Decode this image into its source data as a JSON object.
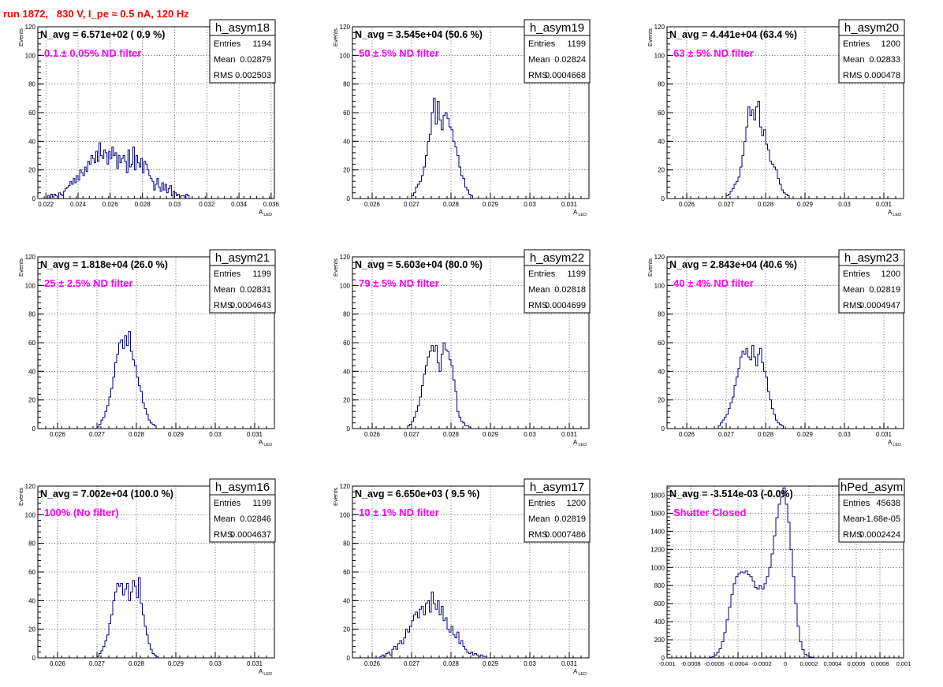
{
  "run_title": "run 1872,   830 V, I_pe ≈ 0.5 nA, 120 Hz",
  "stats_labels": {
    "entries": "Entries",
    "mean": "Mean",
    "rms": "RMS"
  },
  "colors": {
    "histogram": "#000080",
    "annotation": "#ff00ff",
    "title": "#ff0000",
    "grid": "#000000"
  },
  "chart_data": [
    {
      "type": "histogram",
      "name": "h_asym18",
      "navg_text": "N_avg = 6.571e+02 ( 0.9 %)",
      "filter_label": "0.1 ± 0.05% ND filter",
      "entries": "1194",
      "mean": "0.02879",
      "rms": "0.002503",
      "xlabel": "A_LED",
      "ylabel": "Events",
      "xlim": [
        0.0215,
        0.0362
      ],
      "ylim": [
        0,
        120
      ],
      "x_ticks": [
        0.022,
        0.024,
        0.026,
        0.028,
        0.03,
        0.032,
        0.034,
        0.036
      ],
      "x_tick_labels": [
        "0.022",
        "0.024",
        "0.026",
        "0.028",
        "0.03",
        "0.032",
        "0.034",
        "0.036"
      ],
      "y_ticks": [
        0,
        20,
        40,
        60,
        80,
        100,
        120
      ],
      "y_tick_labels": [
        "0",
        "20",
        "40",
        "60",
        "80",
        "100",
        "120"
      ],
      "bins": {
        "x0": 0.0221,
        "width": 0.0001,
        "counts": [
          2,
          0,
          3,
          1,
          3,
          2,
          0,
          4,
          3,
          2,
          5,
          7,
          8,
          9,
          12,
          10,
          14,
          11,
          16,
          13,
          20,
          18,
          16,
          22,
          19,
          26,
          24,
          30,
          28,
          25,
          33,
          26,
          39,
          30,
          28,
          34,
          32,
          24,
          33,
          28,
          36,
          30,
          32,
          21,
          30,
          25,
          28,
          30,
          26,
          18,
          34,
          22,
          24,
          36,
          20,
          30,
          25,
          22,
          28,
          18,
          26,
          24,
          20,
          16,
          14,
          12,
          6,
          10,
          14,
          8,
          5,
          11,
          6,
          10,
          4,
          7,
          9,
          2,
          5,
          4,
          2,
          3,
          1,
          2,
          2,
          1,
          3,
          2
        ]
      }
    },
    {
      "type": "histogram",
      "name": "h_asym19",
      "navg_text": "N_avg = 3.545e+04 (50.6 %)",
      "filter_label": "50 ± 5% ND filter",
      "entries": "1199",
      "mean": "0.02824",
      "rms": "0.0004668",
      "xlabel": "A_LED",
      "ylabel": "Events",
      "xlim": [
        0.0255,
        0.0315
      ],
      "ylim": [
        0,
        120
      ],
      "x_ticks": [
        0.026,
        0.027,
        0.028,
        0.029,
        0.03,
        0.031
      ],
      "x_tick_labels": [
        "0.026",
        "0.027",
        "0.028",
        "0.029",
        "0.03",
        "0.031"
      ],
      "y_ticks": [
        0,
        20,
        40,
        60,
        80,
        100,
        120
      ],
      "y_tick_labels": [
        "0",
        "20",
        "40",
        "60",
        "80",
        "100",
        "120"
      ],
      "bins": {
        "x0": 0.027,
        "width": 5e-05,
        "counts": [
          2,
          4,
          8,
          10,
          12,
          16,
          22,
          30,
          40,
          45,
          60,
          70,
          52,
          68,
          55,
          48,
          58,
          60,
          56,
          50,
          48,
          40,
          36,
          30,
          22,
          16,
          14,
          8,
          6,
          3,
          2
        ]
      }
    },
    {
      "type": "histogram",
      "name": "h_asym20",
      "navg_text": "N_avg = 4.441e+04 (63.4 %)",
      "filter_label": "63 ± 5% ND filter",
      "entries": "1200",
      "mean": "0.02833",
      "rms": "0.000478",
      "xlabel": "A_LED",
      "ylabel": "Events",
      "xlim": [
        0.0255,
        0.0315
      ],
      "ylim": [
        0,
        120
      ],
      "x_ticks": [
        0.026,
        0.027,
        0.028,
        0.029,
        0.03,
        0.031
      ],
      "x_tick_labels": [
        "0.026",
        "0.027",
        "0.028",
        "0.029",
        "0.03",
        "0.031"
      ],
      "y_ticks": [
        0,
        20,
        40,
        60,
        80,
        100,
        120
      ],
      "y_tick_labels": [
        "0",
        "20",
        "40",
        "60",
        "80",
        "100",
        "120"
      ],
      "bins": {
        "x0": 0.027,
        "width": 5e-05,
        "counts": [
          2,
          3,
          5,
          7,
          10,
          12,
          15,
          22,
          30,
          40,
          50,
          64,
          58,
          62,
          55,
          64,
          68,
          50,
          44,
          48,
          38,
          34,
          26,
          24,
          22,
          20,
          14,
          10,
          6,
          4,
          3,
          2
        ]
      }
    },
    {
      "type": "histogram",
      "name": "h_asym21",
      "navg_text": "N_avg = 1.818e+04 (26.0 %)",
      "filter_label": "25 ± 2.5% ND filter",
      "entries": "1199",
      "mean": "0.02831",
      "rms": "0.0004643",
      "xlabel": "A_LED",
      "ylabel": "Events",
      "xlim": [
        0.0255,
        0.0315
      ],
      "ylim": [
        0,
        120
      ],
      "x_ticks": [
        0.026,
        0.027,
        0.028,
        0.029,
        0.03,
        0.031
      ],
      "x_tick_labels": [
        "0.026",
        "0.027",
        "0.028",
        "0.029",
        "0.03",
        "0.031"
      ],
      "y_ticks": [
        0,
        20,
        40,
        60,
        80,
        100,
        120
      ],
      "y_tick_labels": [
        "0",
        "20",
        "40",
        "60",
        "80",
        "100",
        "120"
      ],
      "bins": {
        "x0": 0.027,
        "width": 5e-05,
        "counts": [
          1,
          3,
          6,
          8,
          12,
          16,
          22,
          28,
          36,
          46,
          52,
          60,
          62,
          56,
          65,
          58,
          68,
          54,
          48,
          44,
          36,
          30,
          26,
          18,
          14,
          10,
          6,
          4,
          3,
          2
        ]
      }
    },
    {
      "type": "histogram",
      "name": "h_asym22",
      "navg_text": "N_avg = 5.603e+04 (80.0 %)",
      "filter_label": "79 ± 5% ND filter",
      "entries": "1199",
      "mean": "0.02818",
      "rms": "0.0004699",
      "xlabel": "A_LED",
      "ylabel": "Events",
      "xlim": [
        0.0255,
        0.0315
      ],
      "ylim": [
        0,
        120
      ],
      "x_ticks": [
        0.026,
        0.027,
        0.028,
        0.029,
        0.03,
        0.031
      ],
      "x_tick_labels": [
        "0.026",
        "0.027",
        "0.028",
        "0.029",
        "0.03",
        "0.031"
      ],
      "y_ticks": [
        0,
        20,
        40,
        60,
        80,
        100,
        120
      ],
      "y_tick_labels": [
        "0",
        "20",
        "40",
        "60",
        "80",
        "100",
        "120"
      ],
      "bins": {
        "x0": 0.0269,
        "width": 5e-05,
        "counts": [
          2,
          3,
          5,
          8,
          12,
          16,
          22,
          30,
          38,
          44,
          50,
          54,
          58,
          54,
          58,
          46,
          40,
          52,
          60,
          55,
          54,
          48,
          44,
          34,
          26,
          12,
          8,
          5,
          4,
          2,
          2,
          1
        ]
      }
    },
    {
      "type": "histogram",
      "name": "h_asym23",
      "navg_text": "N_avg = 2.843e+04 (40.6 %)",
      "filter_label": "40 ± 4% ND filter",
      "entries": "1200",
      "mean": "0.02819",
      "rms": "0.0004947",
      "xlabel": "A_LED",
      "ylabel": "Events",
      "xlim": [
        0.0255,
        0.0315
      ],
      "ylim": [
        0,
        120
      ],
      "x_ticks": [
        0.026,
        0.027,
        0.028,
        0.029,
        0.03,
        0.031
      ],
      "x_tick_labels": [
        "0.026",
        "0.027",
        "0.028",
        "0.029",
        "0.03",
        "0.031"
      ],
      "y_ticks": [
        0,
        20,
        40,
        60,
        80,
        100,
        120
      ],
      "y_tick_labels": [
        "0",
        "20",
        "40",
        "60",
        "80",
        "100",
        "120"
      ],
      "bins": {
        "x0": 0.0268,
        "width": 5e-05,
        "counts": [
          2,
          4,
          6,
          8,
          10,
          14,
          18,
          22,
          30,
          36,
          42,
          50,
          54,
          52,
          56,
          50,
          48,
          58,
          50,
          44,
          52,
          56,
          46,
          40,
          36,
          26,
          20,
          14,
          10,
          6,
          4,
          3,
          2
        ]
      }
    },
    {
      "type": "histogram",
      "name": "h_asym16",
      "navg_text": "N_avg = 7.002e+04 (100.0 %)",
      "filter_label": "100% (No filter)",
      "entries": "1199",
      "mean": "0.02846",
      "rms": "0.0004637",
      "xlabel": "A_LED",
      "ylabel": "Events",
      "xlim": [
        0.0255,
        0.0315
      ],
      "ylim": [
        0,
        120
      ],
      "x_ticks": [
        0.026,
        0.027,
        0.028,
        0.029,
        0.03,
        0.031
      ],
      "x_tick_labels": [
        "0.026",
        "0.027",
        "0.028",
        "0.029",
        "0.03",
        "0.031"
      ],
      "y_ticks": [
        0,
        20,
        40,
        60,
        80,
        100,
        120
      ],
      "y_tick_labels": [
        "0",
        "20",
        "40",
        "60",
        "80",
        "100",
        "120"
      ],
      "bins": {
        "x0": 0.027,
        "width": 5e-05,
        "counts": [
          1,
          3,
          5,
          8,
          12,
          16,
          24,
          30,
          40,
          46,
          52,
          50,
          52,
          44,
          48,
          52,
          40,
          46,
          54,
          50,
          42,
          56,
          38,
          30,
          22,
          16,
          10,
          6,
          3,
          2,
          1
        ]
      }
    },
    {
      "type": "histogram",
      "name": "h_asym17",
      "navg_text": "N_avg = 6.650e+03 ( 9.5 %)",
      "filter_label": "10 ± 1% ND filter",
      "entries": "1200",
      "mean": "0.02819",
      "rms": "0.0007486",
      "xlabel": "A_LED",
      "ylabel": "Events",
      "xlim": [
        0.0255,
        0.0315
      ],
      "ylim": [
        0,
        120
      ],
      "x_ticks": [
        0.026,
        0.027,
        0.028,
        0.029,
        0.03,
        0.031
      ],
      "x_tick_labels": [
        "0.026",
        "0.027",
        "0.028",
        "0.029",
        "0.03",
        "0.031"
      ],
      "y_ticks": [
        0,
        20,
        40,
        60,
        80,
        100,
        120
      ],
      "y_tick_labels": [
        "0",
        "20",
        "40",
        "60",
        "80",
        "100",
        "120"
      ],
      "bins": {
        "x0": 0.0262,
        "width": 5e-05,
        "counts": [
          1,
          2,
          1,
          3,
          4,
          2,
          6,
          8,
          6,
          10,
          12,
          10,
          14,
          20,
          18,
          22,
          26,
          30,
          32,
          28,
          34,
          36,
          30,
          38,
          40,
          32,
          46,
          38,
          34,
          40,
          30,
          36,
          26,
          28,
          20,
          18,
          22,
          16,
          14,
          18,
          10,
          12,
          8,
          6,
          4,
          3,
          4,
          2,
          3,
          2,
          1,
          2,
          1,
          1
        ]
      }
    },
    {
      "type": "histogram",
      "name": "hPed_asym",
      "navg_text": "N_avg = -3.514e-03 (-0.0%)",
      "filter_label": "Shutter Closed",
      "entries": "45638",
      "mean": "-1.68e-05",
      "rms": "0.0002424",
      "xlabel": "",
      "ylabel": "",
      "xlim": [
        -0.001,
        0.001
      ],
      "ylim": [
        0,
        1900
      ],
      "x_ticks": [
        -0.001,
        -0.0008,
        -0.0006,
        -0.0004,
        -0.0002,
        0,
        0.0002,
        0.0004,
        0.0006,
        0.0008,
        0.001
      ],
      "x_tick_labels": [
        "-0.001",
        "-0.0008",
        "-0.0006",
        "-0.0004",
        "-0.0002",
        "0",
        "0.0002",
        "0.0004",
        "0.0006",
        "0.0008",
        "0.001"
      ],
      "y_ticks": [
        0,
        200,
        400,
        600,
        800,
        1000,
        1200,
        1400,
        1600,
        1800
      ],
      "y_tick_labels": [
        "0",
        "200",
        "400",
        "600",
        "800",
        "1000",
        "1200",
        "1400",
        "1600",
        "1800"
      ],
      "bins": {
        "x0": -0.00064,
        "width": 2e-05,
        "counts": [
          5,
          15,
          30,
          60,
          100,
          180,
          280,
          420,
          560,
          700,
          820,
          900,
          930,
          950,
          940,
          960,
          920,
          900,
          850,
          780,
          760,
          800,
          760,
          820,
          900,
          1000,
          1150,
          1350,
          1550,
          1700,
          1780,
          1880,
          1700,
          1500,
          1200,
          900,
          600,
          350,
          180,
          90,
          40,
          20,
          10,
          5
        ]
      }
    }
  ]
}
